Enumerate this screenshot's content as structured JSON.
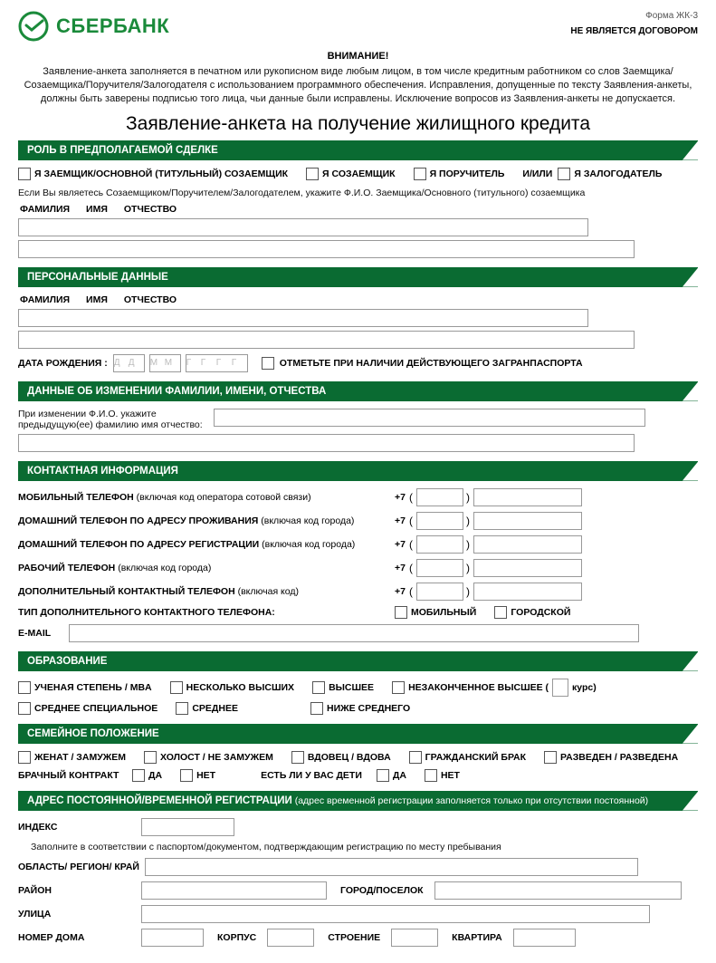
{
  "colors": {
    "brand": "#1a8a3a",
    "bar": "#0a6b32",
    "cell_border": "#999999",
    "text": "#000000",
    "hint": "#bbbbbb"
  },
  "header": {
    "logo_text": "СБЕРБАНК",
    "form_code": "Форма ЖК-3",
    "not_contract": "НЕ ЯВЛЯЕТСЯ ДОГОВОРОМ"
  },
  "attention": "ВНИМАНИЕ!",
  "intro": "Заявление-анкета заполняется в печатном или рукописном виде любым лицом, в том числе кредитным работником со слов Заемщика/Созаемщика/Поручителя/Залогодателя с использованием программного обеспечения. Исправления, допущенные по тексту Заявления-анкеты, должны быть заверены подписью того лица, чьи данные были исправлены. Исключение вопросов из Заявления-анкеты не допускается.",
  "main_title": "Заявление-анкета на получение жилищного кредита",
  "s_role": {
    "title": "РОЛЬ В ПРЕДПОЛАГАЕМОЙ СДЕЛКЕ",
    "opt1": "Я ЗАЕМЩИК/ОСНОВНОЙ (ТИТУЛЬНЫЙ) СОЗАЕМЩИК",
    "opt2": "Я СОЗАЕМЩИК",
    "opt3": "Я ПОРУЧИТЕЛЬ",
    "andor": "И/ИЛИ",
    "opt4": "Я ЗАЛОГОДАТЕЛЬ",
    "note": "Если Вы являетесь Созаемщиком/Поручителем/Залогодателем, укажите Ф.И.О. Заемщика/Основного (титульного) созаемщика",
    "fio_f": "ФАМИЛИЯ",
    "fio_i": "ИМЯ",
    "fio_o": "ОТЧЕСТВО",
    "cells_row1": 37,
    "cells_row2": 40
  },
  "s_personal": {
    "title": "ПЕРСОНАЛЬНЫЕ ДАННЫЕ",
    "fio_f": "ФАМИЛИЯ",
    "fio_i": "ИМЯ",
    "fio_o": "ОТЧЕСТВО",
    "cells_row1": 37,
    "cells_row2": 40,
    "dob_label": "ДАТА РОЖДЕНИЯ :",
    "dob_hint_d": "Д",
    "dob_hint_m": "М",
    "dob_hint_y": "Г",
    "passport_note": "ОТМЕТЬТЕ ПРИ НАЛИЧИИ ДЕЙСТВУЮЩЕГО ЗАГРАНПАСПОРТА"
  },
  "s_namechange": {
    "title": "ДАННЫЕ ОБ ИЗМЕНЕНИИ ФАМИЛИИ, ИМЕНИ, ОТЧЕСТВА",
    "note1": "При изменении Ф.И.О. укажите",
    "note2": "предыдущую(ее) фамилию имя отчество:",
    "cells_row1": 28,
    "cells_row2": 40
  },
  "s_contact": {
    "title": "КОНТАКТНАЯ ИНФОРМАЦИЯ",
    "prefix": "+7",
    "rows": [
      {
        "label_b": "МОБИЛЬНЫЙ ТЕЛЕФОН",
        "label_n": " (включая код оператора сотовой связи)"
      },
      {
        "label_b": "ДОМАШНИЙ ТЕЛЕФОН ПО АДРЕСУ ПРОЖИВАНИЯ",
        "label_n": " (включая код города)"
      },
      {
        "label_b": "ДОМАШНИЙ ТЕЛЕФОН ПО АДРЕСУ РЕГИСТРАЦИИ",
        "label_n": " (включая код города)"
      },
      {
        "label_b": "РАБОЧИЙ ТЕЛЕФОН",
        "label_n": " (включая код города)"
      },
      {
        "label_b": "ДОПОЛНИТЕЛЬНЫЙ КОНТАКТНЫЙ ТЕЛЕФОН",
        "label_n": " (включая код)"
      }
    ],
    "addtype_label": "ТИП ДОПОЛНИТЕЛЬНОГО КОНТАКТНОГО ТЕЛЕФОНА:",
    "addtype_opt1": "МОБИЛЬНЫЙ",
    "addtype_opt2": "ГОРОДСКОЙ",
    "email_label": "E-MAIL",
    "email_cells": 37,
    "phone_area_cells": 3,
    "phone_num_cells": 7
  },
  "s_edu": {
    "title": "ОБРАЗОВАНИЕ",
    "o1": "УЧЕНАЯ СТЕПЕНЬ / MBA",
    "o2": "НЕСКОЛЬКО ВЫСШИХ",
    "o3": "ВЫСШЕЕ",
    "o4a": "НЕЗАКОНЧЕННОЕ ВЫСШЕЕ (",
    "o4b": " курс)",
    "o5": "СРЕДНЕЕ СПЕЦИАЛЬНОЕ",
    "o6": "СРЕДНЕЕ",
    "o7": "НИЖЕ СРЕДНЕГО"
  },
  "s_family": {
    "title": "СЕМЕЙНОЕ ПОЛОЖЕНИЕ",
    "o1": "ЖЕНАТ / ЗАМУЖЕМ",
    "o2": "ХОЛОСТ / НЕ ЗАМУЖЕМ",
    "o3": "ВДОВЕЦ / ВДОВА",
    "o4": "ГРАЖДАНСКИЙ БРАК",
    "o5": "РАЗВЕДЕН / РАЗВЕДЕНА",
    "bk_label": "БРАЧНЫЙ КОНТРАКТ",
    "yes": "ДА",
    "no": "НЕТ",
    "kids_label": "ЕСТЬ ЛИ У ВАС ДЕТИ"
  },
  "s_addr": {
    "title": "АДРЕС ПОСТОЯННОЙ/ВРЕМЕННОЙ РЕГИСТРАЦИИ",
    "title_sub": " (адрес временной регистрации заполняется только при отсутствии постоянной)",
    "index": "ИНДЕКС",
    "index_cells": 6,
    "index_note": "Заполните в соответствии с паспортом/документом, подтверждающим регистрацию по месту пребывания",
    "region": "ОБЛАСТЬ/ РЕГИОН/ КРАЙ",
    "region_cells": 32,
    "rayon": "РАЙОН",
    "rayon_cells": 12,
    "city": "ГОРОД/ПОСЕЛОК",
    "city_cells": 16,
    "street": "УЛИЦА",
    "street_cells": 33,
    "house": "НОМЕР ДОМА",
    "house_cells": 4,
    "korpus": "КОРПУС",
    "korpus_cells": 3,
    "stroenie": "СТРОЕНИЕ",
    "stroenie_cells": 3,
    "kvartira": "КВАРТИРА",
    "kvartira_cells": 4
  }
}
